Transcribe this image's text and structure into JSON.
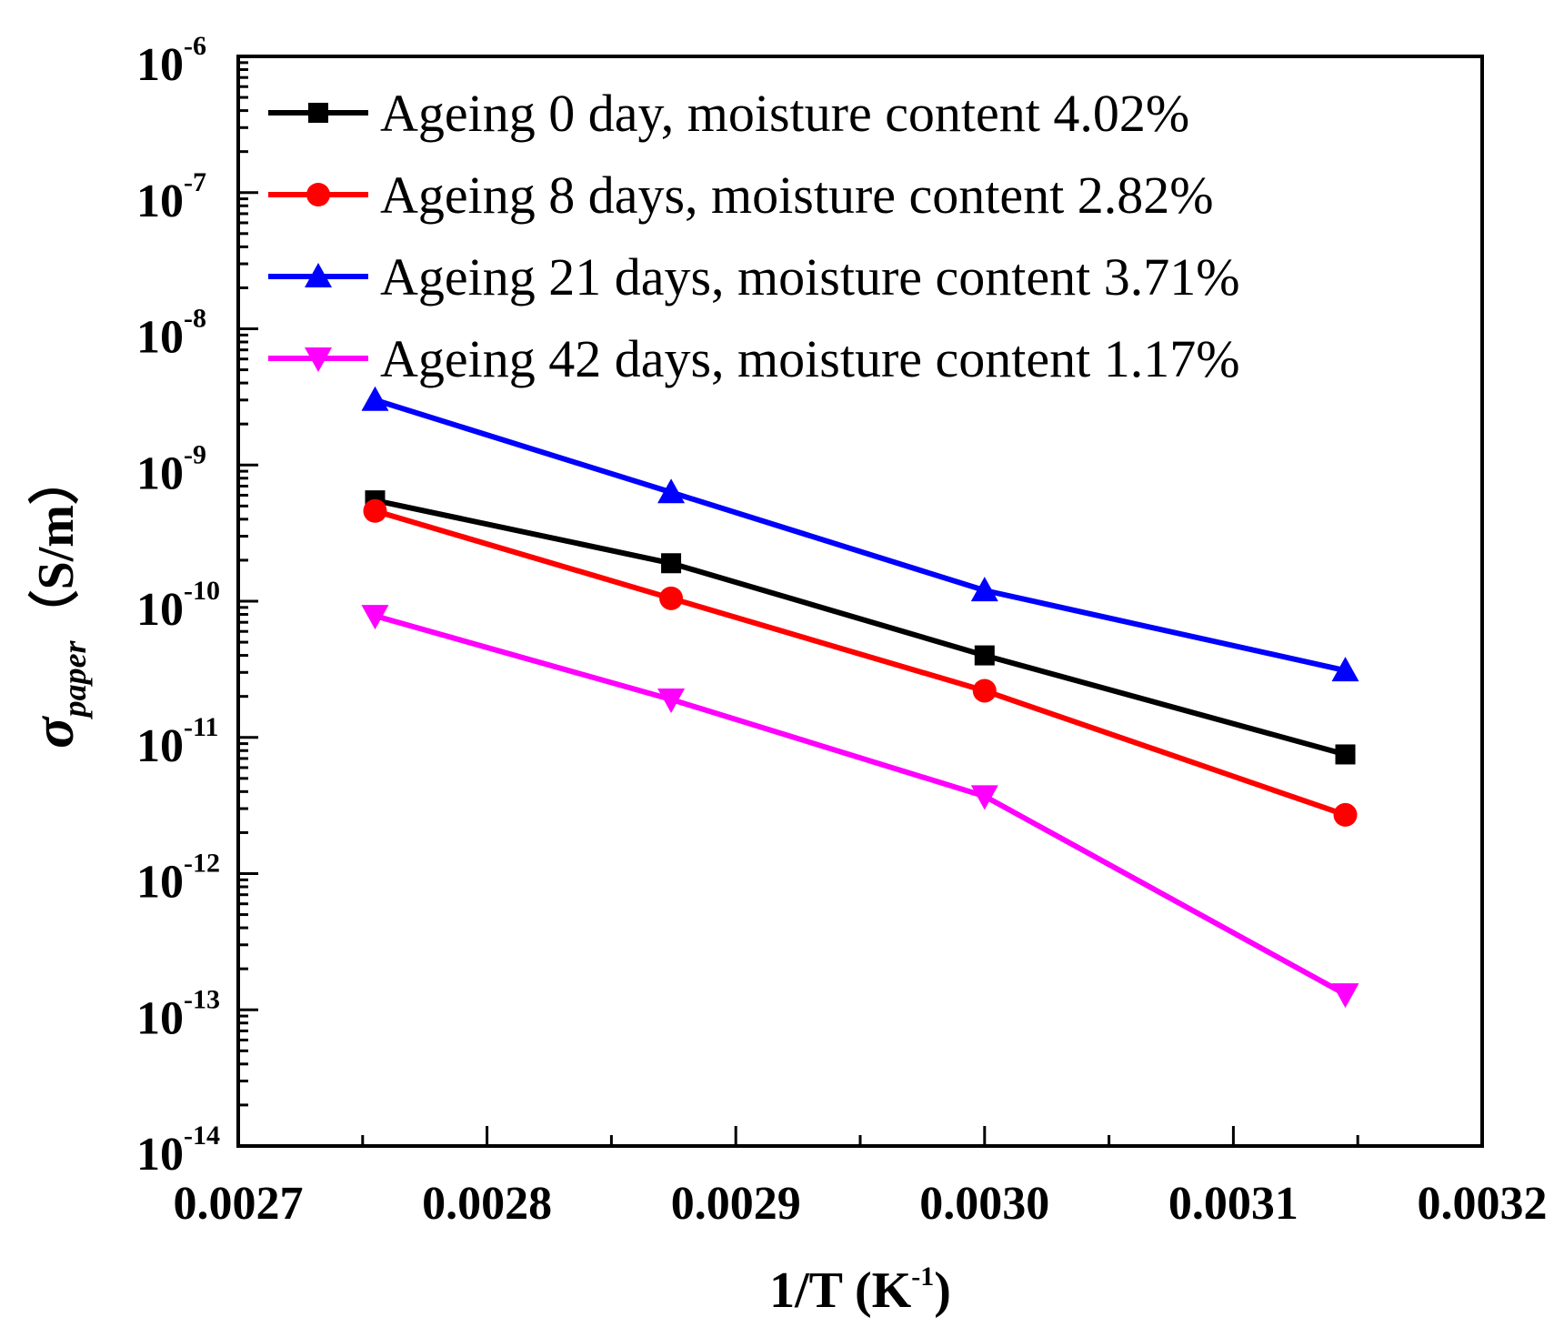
{
  "chart_data": {
    "type": "line",
    "title": "",
    "xlabel": "1/T (K^-1)",
    "ylabel": "σ_paper (S/m)",
    "yscale": "log",
    "xlim": [
      0.0027,
      0.0032
    ],
    "ylim_exp": [
      -14,
      -6
    ],
    "x_ticks": [
      {
        "value": 0.0027,
        "label": "0.0027"
      },
      {
        "value": 0.0028,
        "label": "0.0028"
      },
      {
        "value": 0.0029,
        "label": "0.0029"
      },
      {
        "value": 0.003,
        "label": "0.0030"
      },
      {
        "value": 0.0031,
        "label": "0.0031"
      },
      {
        "value": 0.0032,
        "label": "0.0032"
      }
    ],
    "y_ticks": [
      {
        "exp": -14,
        "base": "10",
        "sup": "-14"
      },
      {
        "exp": -13,
        "base": "10",
        "sup": "-13"
      },
      {
        "exp": -12,
        "base": "10",
        "sup": "-12"
      },
      {
        "exp": -11,
        "base": "10",
        "sup": "-11"
      },
      {
        "exp": -10,
        "base": "10",
        "sup": "-10"
      },
      {
        "exp": -9,
        "base": "10",
        "sup": "-9"
      },
      {
        "exp": -8,
        "base": "10",
        "sup": "-8"
      },
      {
        "exp": -7,
        "base": "10",
        "sup": "-7"
      },
      {
        "exp": -6,
        "base": "10",
        "sup": "-6"
      }
    ],
    "x": [
      0.002755,
      0.002874,
      0.003,
      0.003145
    ],
    "series": [
      {
        "name": "Ageing 0 day, moisture content 4.02%",
        "color": "#000000",
        "marker": "square",
        "values": [
          5.5e-10,
          1.9e-10,
          4e-11,
          7.5e-12
        ]
      },
      {
        "name": "Ageing 8 days, moisture content 2.82%",
        "color": "#ff0000",
        "marker": "circle",
        "values": [
          4.6e-10,
          1.05e-10,
          2.2e-11,
          2.7e-12
        ]
      },
      {
        "name": "Ageing 21 days, moisture content 3.71%",
        "color": "#0000ff",
        "marker": "triangle-up",
        "values": [
          3e-09,
          6.3e-10,
          1.2e-10,
          3.1e-11
        ]
      },
      {
        "name": "Ageing 42 days, moisture content 1.17%",
        "color": "#ff00ff",
        "marker": "triangle-down",
        "values": [
          7.8e-11,
          1.9e-11,
          3.7e-12,
          1.3e-13
        ]
      }
    ],
    "legend": {
      "position": "top-left"
    },
    "axis_labels": {
      "y_symbol": "σ",
      "y_subscript": "paper",
      "y_unit": "（S/m）",
      "x_main": "1/T (K",
      "x_sup": "-1",
      "x_close": ")"
    }
  }
}
